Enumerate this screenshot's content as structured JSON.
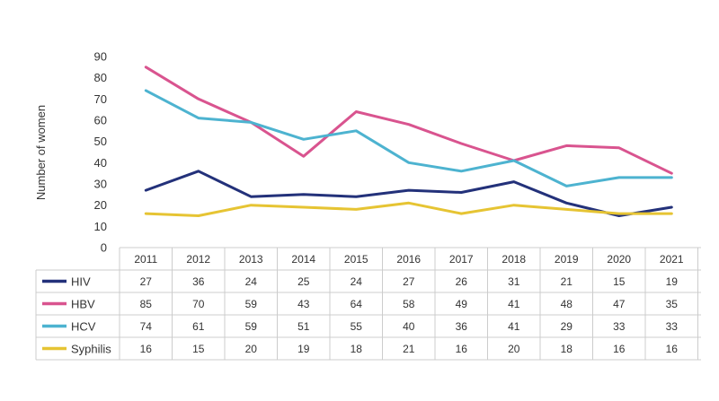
{
  "chart_data": {
    "type": "line",
    "title": "",
    "xlabel": "",
    "ylabel": "Number of women",
    "ylim": [
      0,
      90
    ],
    "yticks": [
      0,
      10,
      20,
      30,
      40,
      50,
      60,
      70,
      80,
      90
    ],
    "grid": false,
    "legend": "data-table-left",
    "categories": [
      "2011",
      "2012",
      "2013",
      "2014",
      "2015",
      "2016",
      "2017",
      "2018",
      "2019",
      "2020",
      "2021"
    ],
    "series": [
      {
        "name": "HIV",
        "color": "#23317a",
        "values": [
          27,
          36,
          24,
          25,
          24,
          27,
          26,
          31,
          21,
          15,
          19
        ]
      },
      {
        "name": "HBV",
        "color": "#d9548f",
        "values": [
          85,
          70,
          59,
          43,
          64,
          58,
          49,
          41,
          48,
          47,
          35
        ]
      },
      {
        "name": "HCV",
        "color": "#4db3d0",
        "values": [
          74,
          61,
          59,
          51,
          55,
          40,
          36,
          41,
          29,
          33,
          33
        ]
      },
      {
        "name": "Syphilis",
        "color": "#e6c433",
        "values": [
          16,
          15,
          20,
          19,
          18,
          21,
          16,
          20,
          18,
          16,
          16
        ]
      }
    ]
  }
}
